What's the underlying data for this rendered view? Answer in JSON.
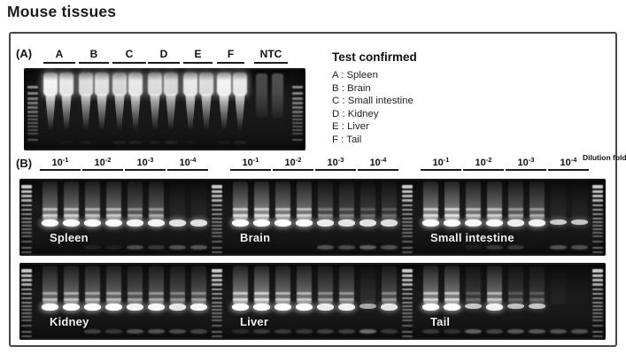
{
  "title": "Mouse tissues",
  "panel_a": {
    "label": "(A)",
    "groups": [
      "A",
      "B",
      "C",
      "D",
      "E",
      "F",
      "NTC"
    ],
    "lanes": {
      "sample_smear_intensity": [
        1,
        0.95,
        0.9,
        0.92,
        0.88,
        0.95,
        0.9,
        0.88,
        0.95,
        0.9,
        1,
        0.95
      ],
      "sample_bottom_band": [
        0,
        0.1,
        0.15,
        0,
        0.2,
        0.2,
        0.15,
        0.25,
        0.1,
        0,
        0.15,
        0.2
      ],
      "ntc_intensity": [
        0.5,
        0.55
      ]
    },
    "legend": {
      "title": "Test confirmed",
      "items": [
        "A : Spleen",
        "B : Brain",
        "C : Small intestine",
        "D : Kidney",
        "E : Liver",
        "F : Tail"
      ]
    }
  },
  "panel_b": {
    "label": "(B)",
    "dilution_fold_label": "Dilution fold",
    "dilutions": [
      {
        "base": "10",
        "exp": "-1"
      },
      {
        "base": "10",
        "exp": "-2"
      },
      {
        "base": "10",
        "exp": "-3"
      },
      {
        "base": "10",
        "exp": "-4"
      }
    ],
    "rows": [
      [
        {
          "name": "Spleen",
          "band": [
            1,
            1,
            1,
            1,
            0.92,
            0.92,
            0.78,
            0.75
          ],
          "smear": [
            0.85,
            0.85,
            0.75,
            0.8,
            0.55,
            0.6,
            0.12,
            0.1
          ],
          "dimer": [
            0,
            0,
            0.12,
            0.12,
            0.45,
            0.3,
            0.5,
            0.55
          ]
        },
        {
          "name": "Brain",
          "band": [
            1,
            1,
            1,
            1,
            0.85,
            0.8,
            0.78,
            0.75
          ],
          "smear": [
            0.95,
            1,
            0.85,
            0.85,
            0.45,
            0.4,
            0.3,
            0.3
          ],
          "dimer": [
            0,
            0,
            0,
            0,
            0.5,
            0.45,
            0.6,
            0.5
          ]
        },
        {
          "name": "Small intestine",
          "band": [
            1,
            1,
            0.95,
            1,
            0.88,
            0.9,
            0.6,
            0.55
          ],
          "smear": [
            0.95,
            1,
            0.8,
            0.85,
            0.6,
            0.6,
            0.12,
            0.08
          ],
          "dimer": [
            0,
            0,
            0.1,
            0.3,
            0.3,
            0,
            0.5,
            0.5
          ]
        }
      ],
      [
        {
          "name": "Kidney",
          "band": [
            1,
            1,
            1,
            1,
            0.9,
            0.95,
            0.8,
            0.92
          ],
          "smear": [
            0.7,
            0.75,
            0.7,
            0.7,
            0.55,
            0.6,
            0.5,
            0.55
          ],
          "dimer": [
            0,
            0,
            0.35,
            0.3,
            0.5,
            0.5,
            0.45,
            0.4
          ]
        },
        {
          "name": "Liver",
          "band": [
            1,
            1,
            1,
            1,
            0.85,
            0.9,
            0.3,
            0.8
          ],
          "smear": [
            0.95,
            1,
            0.8,
            0.8,
            0.55,
            0.6,
            0.18,
            0.5
          ],
          "dimer": [
            0.2,
            0.3,
            0.3,
            0.3,
            0.35,
            0.35,
            0.7,
            0.3
          ]
        },
        {
          "name": "Tail",
          "band": [
            1,
            1,
            0.55,
            0.9,
            0.5,
            0.55,
            0,
            0
          ],
          "smear": [
            0.9,
            0.9,
            0.3,
            0.8,
            0.28,
            0.3,
            0.08,
            0.05
          ],
          "dimer": [
            0.3,
            0.25,
            0.6,
            0.4,
            0.55,
            0.55,
            0.5,
            0.5
          ]
        }
      ]
    ]
  }
}
